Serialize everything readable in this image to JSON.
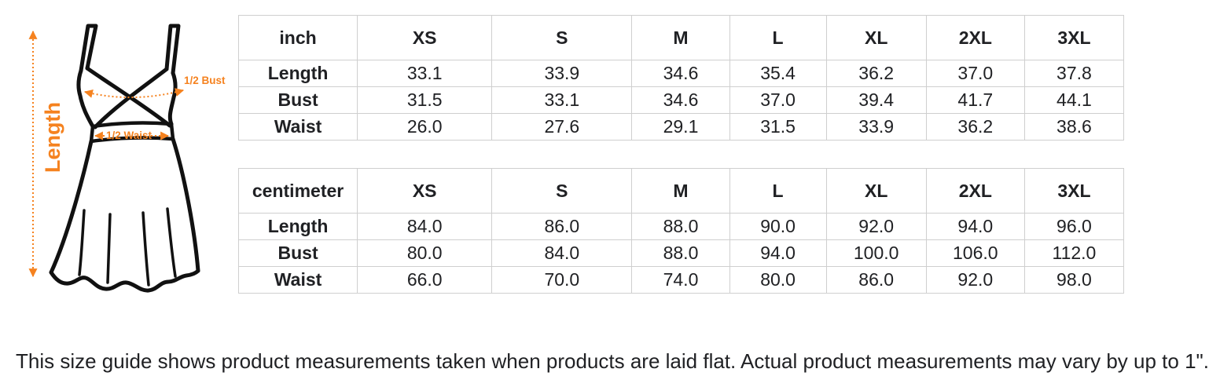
{
  "diagram": {
    "length_label": "Length",
    "bust_label": "1/2 Bust",
    "waist_label": "1/2 Waist",
    "accent_color": "#f5821f",
    "outline_color": "#111111"
  },
  "tables": [
    {
      "unit": "inch",
      "sizes": [
        "XS",
        "S",
        "M",
        "L",
        "XL",
        "2XL",
        "3XL"
      ],
      "rows": [
        {
          "label": "Length",
          "values": [
            "33.1",
            "33.9",
            "34.6",
            "35.4",
            "36.2",
            "37.0",
            "37.8"
          ]
        },
        {
          "label": "Bust",
          "values": [
            "31.5",
            "33.1",
            "34.6",
            "37.0",
            "39.4",
            "41.7",
            "44.1"
          ]
        },
        {
          "label": "Waist",
          "values": [
            "26.0",
            "27.6",
            "29.1",
            "31.5",
            "33.9",
            "36.2",
            "38.6"
          ]
        }
      ]
    },
    {
      "unit": "centimeter",
      "sizes": [
        "XS",
        "S",
        "M",
        "L",
        "XL",
        "2XL",
        "3XL"
      ],
      "rows": [
        {
          "label": "Length",
          "values": [
            "84.0",
            "86.0",
            "88.0",
            "90.0",
            "92.0",
            "94.0",
            "96.0"
          ]
        },
        {
          "label": "Bust",
          "values": [
            "80.0",
            "84.0",
            "88.0",
            "94.0",
            "100.0",
            "106.0",
            "112.0"
          ]
        },
        {
          "label": "Waist",
          "values": [
            "66.0",
            "70.0",
            "74.0",
            "80.0",
            "86.0",
            "92.0",
            "98.0"
          ]
        }
      ]
    }
  ],
  "note": "This size guide shows product measurements taken when products are laid flat. Actual product measurements may vary by up to 1\"."
}
